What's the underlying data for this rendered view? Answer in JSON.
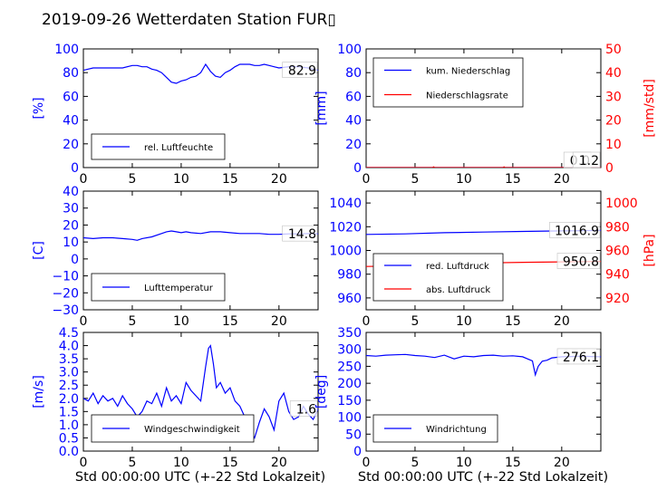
{
  "title": "2019-09-26 Wetterdaten Station FUR▯",
  "xlabel": "Std 00:00:00 UTC (+-22 Std Lokalzeit)",
  "colors": {
    "left_axis": "#0000ff",
    "right_axis": "#ff0000",
    "line_blue": "#0000ff",
    "line_red": "#ff0000",
    "wind_highlight": "#8888ff"
  },
  "chart_data": [
    {
      "type": "line",
      "ylabel": "[%]",
      "xlim": [
        0,
        24
      ],
      "ylim": [
        0,
        100
      ],
      "xticks": [
        "0",
        "5",
        "10",
        "15",
        "20"
      ],
      "yticks": [
        "0",
        "20",
        "40",
        "60",
        "80",
        "100"
      ],
      "series": [
        {
          "name": "rel. Luftfeuchte",
          "x": [
            0,
            1,
            2,
            3,
            4,
            5,
            5.5,
            6,
            6.5,
            7,
            7.5,
            8,
            8.5,
            9,
            9.5,
            10,
            10.5,
            11,
            11.5,
            12,
            12.5,
            13,
            13.5,
            14,
            14.5,
            15,
            15.5,
            16,
            16.5,
            17,
            17.5,
            18,
            18.5,
            19,
            19.5,
            20,
            21,
            22,
            23,
            24
          ],
          "y": [
            82,
            84,
            84,
            84,
            84,
            86,
            86,
            85,
            85,
            83,
            82,
            80,
            76,
            72,
            71,
            73,
            74,
            76,
            77,
            80,
            87,
            81,
            77,
            76,
            80,
            82,
            85,
            87,
            87,
            87,
            86,
            86,
            87,
            86,
            85,
            84,
            85,
            85,
            84,
            82
          ]
        }
      ],
      "legend": "lower-left",
      "annotation": "82.9"
    },
    {
      "type": "line",
      "ylabel": "[mm]",
      "ylabel_right": "[mm/std]",
      "xlim": [
        0,
        24
      ],
      "ylim": [
        0,
        100
      ],
      "ylim_right": [
        0,
        50
      ],
      "xticks": [
        "0",
        "5",
        "10",
        "15",
        "20"
      ],
      "yticks": [
        "0",
        "20",
        "40",
        "60",
        "80",
        "100"
      ],
      "yticks_right": [
        "0",
        "10",
        "20",
        "30",
        "40",
        "50"
      ],
      "series": [
        {
          "name": "kum. Niederschlag",
          "axis": "left",
          "x": [
            0,
            24
          ],
          "y": [
            0,
            0
          ]
        },
        {
          "name": "Niederschlagsrate",
          "axis": "right",
          "x": [
            0,
            6.8,
            6.9,
            7,
            14,
            14.1,
            14.2,
            24
          ],
          "y": [
            0,
            0,
            0.3,
            0,
            0,
            0.3,
            0,
            0
          ]
        }
      ],
      "legend": "upper-left",
      "annotations": [
        "0.0",
        "1.2"
      ]
    },
    {
      "type": "line",
      "ylabel": "[C]",
      "xlim": [
        0,
        24
      ],
      "ylim": [
        -30,
        40
      ],
      "xticks": [
        "0",
        "5",
        "10",
        "15",
        "20"
      ],
      "yticks": [
        "−30",
        "−20",
        "−10",
        "0",
        "10",
        "20",
        "30",
        "40"
      ],
      "series": [
        {
          "name": "Lufttemperatur",
          "x": [
            0,
            1,
            2,
            3,
            4,
            5,
            5.5,
            6,
            7,
            8,
            8.5,
            9,
            9.5,
            10,
            10.5,
            11,
            12,
            13,
            14,
            15,
            16,
            17,
            18,
            19,
            20,
            21,
            22,
            23,
            24
          ],
          "y": [
            12.5,
            12,
            12.5,
            12.5,
            12,
            11.5,
            11,
            12,
            13,
            15,
            16,
            16.5,
            16,
            15.5,
            16,
            15.5,
            15,
            16,
            16,
            15.5,
            15,
            15,
            15,
            14.5,
            14.5,
            14.8,
            14.8,
            15,
            14.8
          ]
        }
      ],
      "legend": "lower-left",
      "annotation": "14.8"
    },
    {
      "type": "line",
      "ylabel_right": "[hPa]",
      "xlim": [
        0,
        24
      ],
      "ylim": [
        950,
        1050
      ],
      "ylim_right": [
        910,
        1010
      ],
      "xticks": [
        "0",
        "5",
        "10",
        "15",
        "20"
      ],
      "yticks": [
        "960",
        "980",
        "1000",
        "1020",
        "1040"
      ],
      "yticks_right": [
        "920",
        "940",
        "960",
        "980",
        "1000"
      ],
      "series": [
        {
          "name": "red. Luftdruck",
          "axis": "left",
          "x": [
            0,
            4,
            8,
            12,
            16,
            20,
            24
          ],
          "y": [
            1013.5,
            1014,
            1015,
            1015.5,
            1016,
            1016.5,
            1016.9
          ]
        },
        {
          "name": "abs. Luftdruck",
          "axis": "right",
          "x": [
            0,
            4,
            8,
            12,
            16,
            20,
            24
          ],
          "y": [
            946.5,
            947,
            948.5,
            949.5,
            950,
            950.4,
            950.8
          ]
        }
      ],
      "legend": "lower-left",
      "annotations": [
        "1016.9",
        "950.8"
      ]
    },
    {
      "type": "line",
      "ylabel": "[m/s]",
      "xlim": [
        0,
        24
      ],
      "ylim": [
        0,
        4.5
      ],
      "xticks": [
        "0",
        "5",
        "10",
        "15",
        "20"
      ],
      "yticks": [
        "0.0",
        "0.5",
        "1.0",
        "1.5",
        "2.0",
        "2.5",
        "3.0",
        "3.5",
        "4.0",
        "4.5"
      ],
      "series": [
        {
          "name": "Windgeschwindigkeit",
          "x": [
            0,
            0.5,
            1,
            1.5,
            2,
            2.5,
            3,
            3.5,
            4,
            4.5,
            5,
            5.5,
            6,
            6.5,
            7,
            7.5,
            8,
            8.5,
            9,
            9.5,
            10,
            10.5,
            11,
            11.5,
            12,
            12.5,
            12.8,
            13,
            13.3,
            13.6,
            14,
            14.5,
            15,
            15.5,
            16,
            16.5,
            17,
            17.5,
            18,
            18.5,
            19,
            19.5,
            20,
            20.5,
            21,
            21.5,
            22,
            22.5,
            23,
            23.5,
            24
          ],
          "y": [
            2.0,
            1.9,
            2.2,
            1.8,
            2.1,
            1.9,
            2.0,
            1.7,
            2.1,
            1.8,
            1.6,
            1.3,
            1.5,
            1.9,
            1.8,
            2.2,
            1.7,
            2.4,
            1.9,
            2.1,
            1.8,
            2.6,
            2.3,
            2.1,
            1.9,
            3.2,
            3.9,
            4.0,
            3.3,
            2.4,
            2.6,
            2.2,
            2.4,
            1.9,
            1.7,
            1.3,
            0.8,
            0.5,
            1.1,
            1.6,
            1.3,
            0.8,
            1.9,
            2.2,
            1.5,
            1.2,
            1.3,
            1.7,
            1.4,
            1.2,
            1.6
          ]
        }
      ],
      "legend": "lower-left",
      "annotation": "1.6"
    },
    {
      "type": "line",
      "ylabel": "[deg]",
      "xlim": [
        0,
        24
      ],
      "ylim": [
        0,
        350
      ],
      "xticks": [
        "0",
        "5",
        "10",
        "15",
        "20"
      ],
      "yticks": [
        "0",
        "50",
        "100",
        "150",
        "200",
        "250",
        "300",
        "350"
      ],
      "series": [
        {
          "name": "Windrichtung",
          "x": [
            0,
            1,
            2,
            3,
            4,
            5,
            6,
            7,
            8,
            9,
            10,
            11,
            12,
            13,
            14,
            15,
            16,
            16.5,
            17,
            17.3,
            17.6,
            18,
            18.5,
            19,
            20,
            21,
            22,
            23,
            24
          ],
          "y": [
            282,
            280,
            283,
            284,
            285,
            282,
            280,
            276,
            283,
            272,
            280,
            278,
            282,
            283,
            280,
            281,
            278,
            272,
            266,
            225,
            250,
            265,
            268,
            275,
            278,
            279,
            280,
            279,
            278
          ]
        }
      ],
      "legend": "lower-left",
      "annotation": "276.1"
    }
  ]
}
